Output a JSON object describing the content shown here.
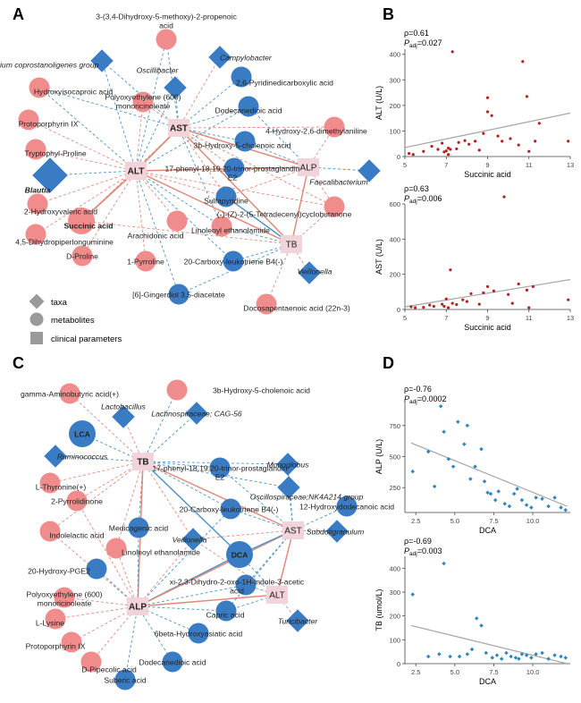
{
  "panel_labels": {
    "A": "A",
    "B": "B",
    "C": "C",
    "D": "D"
  },
  "colors": {
    "metabolite": "#F08C8C",
    "taxa": "#3A7CC4",
    "clinical": "#F3D3DA",
    "pos_edge": "#E08A7D",
    "neg_edge": "#4F93C7",
    "point_B": "#B22222",
    "point_D": "#2E86C1",
    "fit": "#AAAAAA"
  },
  "legend": {
    "taxa": "taxa",
    "metabolites": "metabolites",
    "clinical": "clinical parameters"
  },
  "network_A": {
    "nodes": [
      {
        "id": "ALT",
        "label": "ALT",
        "type": "clinical",
        "bold": true
      },
      {
        "id": "AST",
        "label": "AST",
        "type": "clinical",
        "bold": true
      },
      {
        "id": "ALP",
        "label": "ALP",
        "type": "clinical"
      },
      {
        "id": "TB",
        "label": "TB",
        "type": "clinical"
      },
      {
        "id": "hmpa",
        "label": "3-(3,4-Dihydroxy-5-methoxy)-2-propenoic acid",
        "type": "metabolite"
      },
      {
        "id": "euba",
        "label": "Eubacterium coprostanoligenes group",
        "type": "taxa",
        "italic": true
      },
      {
        "id": "campy",
        "label": "Campylobacter",
        "type": "taxa",
        "italic": true
      },
      {
        "id": "osci",
        "label": "Oscillibacter",
        "type": "taxa",
        "italic": true
      },
      {
        "id": "pdca",
        "label": "2,6-Pyridinedicarboxylic acid",
        "type": "metabolite"
      },
      {
        "id": "hica",
        "label": "Hydroxyisocaproic acid",
        "type": "metabolite"
      },
      {
        "id": "peg",
        "label": "Polyoxyethylene (600) monoricinoleate",
        "type": "metabolite"
      },
      {
        "id": "dode",
        "label": "Dodecanedioic acid",
        "type": "metabolite"
      },
      {
        "id": "proto",
        "label": "Protoporphyrin IX",
        "type": "metabolite"
      },
      {
        "id": "hdma",
        "label": "4-Hydroxy-2,6-dimethylaniline",
        "type": "metabolite"
      },
      {
        "id": "trp",
        "label": "Tryptophyl-Proline",
        "type": "metabolite"
      },
      {
        "id": "hcho",
        "label": "3b-Hydroxy-5-cholenoic acid",
        "type": "metabolite"
      },
      {
        "id": "blau",
        "label": "Blautia",
        "type": "taxa",
        "italic": true,
        "bold": true
      },
      {
        "id": "pgl",
        "label": "17-phenyl-18,19,20-trinor-prostaglandin E2",
        "type": "metabolite"
      },
      {
        "id": "faec",
        "label": "Faecalibacterium",
        "type": "taxa",
        "italic": true
      },
      {
        "id": "hva",
        "label": "2-Hydroxyvaleric acid",
        "type": "metabolite"
      },
      {
        "id": "sulfa",
        "label": "Sulfapyridine",
        "type": "metabolite"
      },
      {
        "id": "succ",
        "label": "Succinic acid",
        "type": "metabolite",
        "bold": true
      },
      {
        "id": "tdcb",
        "label": "(-)-(Z)-2-(5-Tetradecenyl)cyclobutanone",
        "type": "metabolite"
      },
      {
        "id": "dpg",
        "label": "4,5-Dihydropiperlonguminine",
        "type": "metabolite"
      },
      {
        "id": "arach",
        "label": "Arachidonic acid",
        "type": "metabolite"
      },
      {
        "id": "lea",
        "label": "Linoleoyl ethanolamide",
        "type": "metabolite"
      },
      {
        "id": "dpro",
        "label": "D-Proline",
        "type": "metabolite"
      },
      {
        "id": "pyrr",
        "label": "1-Pyrroline",
        "type": "metabolite"
      },
      {
        "id": "cltb4",
        "label": "20-Carboxy-leukotriene B4(-)",
        "type": "metabolite"
      },
      {
        "id": "veil",
        "label": "Veillonella",
        "type": "taxa",
        "italic": true
      },
      {
        "id": "ging",
        "label": "[6]-Gingerdiol 3,5-diacetate",
        "type": "metabolite"
      },
      {
        "id": "dpa",
        "label": "Docosapentaenoic acid (22n-3)",
        "type": "metabolite"
      }
    ]
  },
  "network_C": {
    "nodes": [
      {
        "id": "TB",
        "label": "TB",
        "type": "clinical",
        "bold": true
      },
      {
        "id": "ALP",
        "label": "ALP",
        "type": "clinical",
        "bold": true
      },
      {
        "id": "AST",
        "label": "AST",
        "type": "clinical"
      },
      {
        "id": "ALT",
        "label": "ALT",
        "type": "clinical"
      },
      {
        "id": "hcho",
        "label": "3b-Hydroxy-5-cholenoic acid",
        "type": "metabolite"
      },
      {
        "id": "gaba",
        "label": "gamma-Aminobutyric acid(+)",
        "type": "metabolite"
      },
      {
        "id": "lacto",
        "label": "Lactobacillus",
        "type": "taxa",
        "italic": true
      },
      {
        "id": "lachno",
        "label": "Lachnospiraceae; CAG-56",
        "type": "taxa",
        "italic": true
      },
      {
        "id": "lca",
        "label": "LCA",
        "type": "metabolite",
        "bold": true
      },
      {
        "id": "rumi",
        "label": "Ruminococcus",
        "type": "taxa",
        "italic": true
      },
      {
        "id": "pgl",
        "label": "17-phenyl-18,19,20-trinor-prostaglandin E2",
        "type": "metabolite"
      },
      {
        "id": "mono",
        "label": "Monoglobus",
        "type": "taxa",
        "italic": true
      },
      {
        "id": "thyr",
        "label": "L-Thyronine(+)",
        "type": "metabolite"
      },
      {
        "id": "oscnk",
        "label": "Oscillospiraceae;NK4A214 group",
        "type": "taxa",
        "italic": true
      },
      {
        "id": "pyrl",
        "label": "2-Pyrrolidinone",
        "type": "metabolite"
      },
      {
        "id": "cltb4",
        "label": "20-Carboxy-leukotriene B4(-)",
        "type": "metabolite"
      },
      {
        "id": "hdda",
        "label": "12-Hydroxydodecanoic acid",
        "type": "metabolite"
      },
      {
        "id": "ila",
        "label": "Indolelactic acid",
        "type": "metabolite"
      },
      {
        "id": "medi",
        "label": "Medicagenic acid",
        "type": "metabolite"
      },
      {
        "id": "subd",
        "label": "Subdoligranulum",
        "type": "taxa",
        "italic": true
      },
      {
        "id": "lea",
        "label": "Linoleoyl ethanolamide",
        "type": "metabolite"
      },
      {
        "id": "veil",
        "label": "Veillonella",
        "type": "taxa",
        "italic": true
      },
      {
        "id": "dca",
        "label": "DCA",
        "type": "metabolite",
        "bold": true
      },
      {
        "id": "hpge",
        "label": "20-Hydroxy-PGE2",
        "type": "metabolite"
      },
      {
        "id": "xi",
        "label": "xi-2,3-Dihydro-2-oxo-1H-indole-3-acetic acid",
        "type": "metabolite"
      },
      {
        "id": "peg",
        "label": "Polyoxyethylene (600) monoricinoleate",
        "type": "metabolite"
      },
      {
        "id": "lys",
        "label": "L-Lysine",
        "type": "metabolite"
      },
      {
        "id": "capric",
        "label": "Capric acid",
        "type": "metabolite"
      },
      {
        "id": "turi",
        "label": "Turicibacter",
        "type": "taxa",
        "italic": true
      },
      {
        "id": "proto",
        "label": "Protoporphyrin IX",
        "type": "metabolite"
      },
      {
        "id": "hasi",
        "label": "6beta-Hydroxyasiatic acid",
        "type": "metabolite"
      },
      {
        "id": "dpip",
        "label": "D-Pipecolic acid",
        "type": "metabolite"
      },
      {
        "id": "dode",
        "label": "Dodecanedioic acid",
        "type": "metabolite"
      },
      {
        "id": "sub",
        "label": "Suberic acid",
        "type": "metabolite"
      }
    ]
  },
  "chart_data": [
    {
      "type": "scatter",
      "panel": "B-top",
      "title": "",
      "stats": [
        "ρ=0.61",
        "Pₐₑ=0.027"
      ],
      "stat_rho": "ρ=0.61",
      "stat_p_sym": "P",
      "stat_p_sub": "adj",
      "stat_p_val": "=0.027",
      "xlabel": "Succinic acid",
      "ylabel": "ALT (U/L)",
      "xlim": [
        5,
        13
      ],
      "ylim": [
        0,
        420
      ],
      "xticks": [
        5,
        7,
        9,
        11,
        13
      ],
      "yticks": [
        0,
        100,
        200,
        300,
        400
      ],
      "fit": [
        [
          5,
          35
        ],
        [
          13,
          170
        ]
      ],
      "points": [
        [
          5.2,
          12
        ],
        [
          5.4,
          8
        ],
        [
          5.9,
          20
        ],
        [
          6.3,
          40
        ],
        [
          6.6,
          28
        ],
        [
          6.8,
          52
        ],
        [
          6.9,
          18
        ],
        [
          7.0,
          22
        ],
        [
          7.1,
          8
        ],
        [
          7.1,
          33
        ],
        [
          7.2,
          28
        ],
        [
          7.3,
          410
        ],
        [
          7.5,
          30
        ],
        [
          7.6,
          55
        ],
        [
          7.9,
          62
        ],
        [
          8.1,
          48
        ],
        [
          8.4,
          60
        ],
        [
          8.6,
          25
        ],
        [
          8.8,
          90
        ],
        [
          9.0,
          175
        ],
        [
          9.0,
          230
        ],
        [
          9.2,
          160
        ],
        [
          9.5,
          80
        ],
        [
          9.7,
          60
        ],
        [
          10.1,
          70
        ],
        [
          10.5,
          45
        ],
        [
          10.7,
          372
        ],
        [
          10.9,
          235
        ],
        [
          11.0,
          20
        ],
        [
          11.3,
          60
        ],
        [
          11.5,
          130
        ],
        [
          12.9,
          60
        ]
      ]
    },
    {
      "type": "scatter",
      "panel": "B-bottom",
      "stats": [
        "ρ=0.63",
        "Padj=0.006"
      ],
      "stat_rho": "ρ=0.63",
      "stat_p_sym": "P",
      "stat_p_sub": "adj",
      "stat_p_val": "=0.006",
      "xlabel": "Succinic acid",
      "ylabel": "AST (U/L)",
      "xlim": [
        5,
        13
      ],
      "ylim": [
        0,
        600
      ],
      "xticks": [
        5,
        7,
        9,
        11,
        13
      ],
      "yticks": [
        0,
        200,
        400,
        600
      ],
      "fit": [
        [
          5,
          15
        ],
        [
          13,
          170
        ]
      ],
      "points": [
        [
          5.3,
          15
        ],
        [
          5.5,
          10
        ],
        [
          5.9,
          12
        ],
        [
          6.2,
          25
        ],
        [
          6.4,
          18
        ],
        [
          6.8,
          30
        ],
        [
          6.9,
          18
        ],
        [
          7.0,
          60
        ],
        [
          7.1,
          10
        ],
        [
          7.2,
          225
        ],
        [
          7.3,
          35
        ],
        [
          7.5,
          28
        ],
        [
          7.8,
          55
        ],
        [
          8.0,
          45
        ],
        [
          8.2,
          90
        ],
        [
          8.6,
          30
        ],
        [
          8.8,
          95
        ],
        [
          9.0,
          130
        ],
        [
          9.3,
          105
        ],
        [
          9.8,
          640
        ],
        [
          10.0,
          85
        ],
        [
          10.2,
          35
        ],
        [
          10.5,
          145
        ],
        [
          10.9,
          110
        ],
        [
          11.0,
          10
        ],
        [
          11.2,
          130
        ],
        [
          12.9,
          55
        ]
      ]
    },
    {
      "type": "scatter",
      "panel": "D-top",
      "stats": [
        "ρ=-0.76",
        "Padj=0.0002"
      ],
      "stat_rho": "ρ=-0.76",
      "stat_p_sym": "P",
      "stat_p_sub": "adj",
      "stat_p_val": "=0.0002",
      "xlabel": "DCA",
      "ylabel": "ALP (U/L)",
      "xlim": [
        1.8,
        12.4
      ],
      "ylim": [
        50,
        950
      ],
      "xticks": [
        2.5,
        5.0,
        7.5,
        10.0
      ],
      "xticklabels": [
        "2.5",
        "5.0",
        "7.5",
        "10.0"
      ],
      "yticks": [
        250,
        500,
        750
      ],
      "fit": [
        [
          2.2,
          610
        ],
        [
          12.2,
          100
        ]
      ],
      "points": [
        [
          2.3,
          380
        ],
        [
          3.3,
          540
        ],
        [
          3.7,
          260
        ],
        [
          4.1,
          905
        ],
        [
          4.3,
          700
        ],
        [
          4.6,
          480
        ],
        [
          4.9,
          420
        ],
        [
          5.2,
          780
        ],
        [
          5.6,
          600
        ],
        [
          5.8,
          750
        ],
        [
          6.0,
          320
        ],
        [
          6.3,
          420
        ],
        [
          6.7,
          560
        ],
        [
          6.9,
          300
        ],
        [
          7.1,
          210
        ],
        [
          7.3,
          200
        ],
        [
          7.6,
          150
        ],
        [
          7.8,
          220
        ],
        [
          8.2,
          120
        ],
        [
          8.5,
          100
        ],
        [
          8.8,
          200
        ],
        [
          9.0,
          240
        ],
        [
          9.3,
          150
        ],
        [
          9.6,
          110
        ],
        [
          9.9,
          90
        ],
        [
          10.2,
          170
        ],
        [
          10.6,
          160
        ],
        [
          11.0,
          100
        ],
        [
          11.4,
          170
        ],
        [
          11.8,
          90
        ],
        [
          12.1,
          70
        ]
      ]
    },
    {
      "type": "scatter",
      "panel": "D-bottom",
      "stats": [
        "ρ=-0.69",
        "Padj=0.003"
      ],
      "stat_rho": "ρ=-0.69",
      "stat_p_sym": "P",
      "stat_p_sub": "adj",
      "stat_p_val": "=0.003",
      "xlabel": "DCA",
      "ylabel": "TB (umol/L)",
      "xlim": [
        1.8,
        12.4
      ],
      "ylim": [
        0,
        450
      ],
      "xticks": [
        2.5,
        5.0,
        7.5,
        10.0
      ],
      "xticklabels": [
        "2.5",
        "5.0",
        "7.5",
        "10.0"
      ],
      "yticks": [
        0,
        100,
        200,
        300,
        400
      ],
      "fit": [
        [
          2.2,
          160
        ],
        [
          12.2,
          0
        ]
      ],
      "points": [
        [
          2.3,
          290
        ],
        [
          3.3,
          30
        ],
        [
          4.0,
          40
        ],
        [
          4.3,
          420
        ],
        [
          4.7,
          30
        ],
        [
          5.3,
          30
        ],
        [
          5.8,
          40
        ],
        [
          6.1,
          60
        ],
        [
          6.4,
          190
        ],
        [
          6.7,
          160
        ],
        [
          7.0,
          45
        ],
        [
          7.4,
          25
        ],
        [
          7.7,
          35
        ],
        [
          8.0,
          20
        ],
        [
          8.3,
          45
        ],
        [
          8.6,
          30
        ],
        [
          8.9,
          25
        ],
        [
          9.1,
          20
        ],
        [
          9.3,
          40
        ],
        [
          9.6,
          35
        ],
        [
          9.9,
          25
        ],
        [
          10.2,
          40
        ],
        [
          10.6,
          45
        ],
        [
          11.0,
          20
        ],
        [
          11.4,
          35
        ],
        [
          11.8,
          30
        ],
        [
          12.1,
          25
        ]
      ]
    }
  ]
}
